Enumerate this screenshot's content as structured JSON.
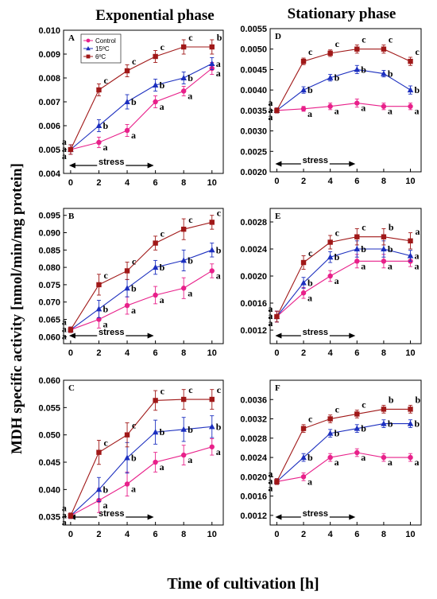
{
  "figure": {
    "col_titles": [
      "Exponential phase",
      "Stationary phase"
    ],
    "ylabel": "MDH specific activity [nmol/min/mg protein]",
    "xlabel": "Time of cultivation [h]",
    "stress_label": "stress"
  },
  "colors": {
    "control": "#e8208a",
    "t15": "#1c2fbf",
    "t6": "#a01818"
  },
  "legend": [
    "Control",
    "15ºC",
    "6ºC"
  ],
  "chart_data": [
    {
      "panel": "A",
      "type": "line",
      "x": [
        0,
        2,
        4,
        6,
        8,
        10
      ],
      "xticks": [
        0,
        2,
        4,
        6,
        8,
        10
      ],
      "ylim": [
        0.004,
        0.01
      ],
      "yticks": [
        "0.004",
        "0.005",
        "0.006",
        "0.007",
        "0.008",
        "0.009",
        "0.010"
      ],
      "show_legend": true,
      "series": [
        {
          "name": "Control",
          "values": [
            0.005,
            0.0053,
            0.0058,
            0.007,
            0.00745,
            0.0084
          ],
          "err": [
            0.0002,
            0.00022,
            0.00025,
            0.00025,
            0.0002,
            0.00025
          ],
          "labels": [
            "a",
            "a",
            "a",
            "a",
            "a",
            "a"
          ]
        },
        {
          "name": "15ºC",
          "values": [
            0.005,
            0.006,
            0.007,
            0.0077,
            0.008,
            0.0086
          ],
          "err": [
            0.0002,
            0.00025,
            0.0003,
            0.00025,
            0.00025,
            0.00025
          ],
          "labels": [
            "a",
            "b",
            "b",
            "b",
            "b",
            "a"
          ]
        },
        {
          "name": "6ºC",
          "values": [
            0.005,
            0.0075,
            0.0083,
            0.0089,
            0.0093,
            0.0093
          ],
          "err": [
            0.0002,
            0.00025,
            0.00025,
            0.00025,
            0.0003,
            0.0003
          ],
          "labels": [
            "a",
            "c",
            "c",
            "c",
            "c",
            "b"
          ]
        }
      ]
    },
    {
      "panel": "D",
      "type": "line",
      "x": [
        0,
        2,
        4,
        6,
        8,
        10
      ],
      "xticks": [
        0,
        2,
        4,
        6,
        8,
        10
      ],
      "ylim": [
        0.002,
        0.0055
      ],
      "yticks": [
        "0.0020",
        "0.0025",
        "0.0030",
        "0.0035",
        "0.0040",
        "0.0045",
        "0.0050",
        "0.0055"
      ],
      "show_legend": false,
      "series": [
        {
          "name": "Control",
          "values": [
            0.0035,
            0.00354,
            0.0036,
            0.00368,
            0.0036,
            0.0036
          ],
          "err": [
            6e-05,
            6e-05,
            8e-05,
            0.0001,
            8e-05,
            8e-05
          ],
          "labels": [
            "a",
            "a",
            "a",
            "a",
            "a",
            "a"
          ]
        },
        {
          "name": "15ºC",
          "values": [
            0.0035,
            0.004,
            0.0043,
            0.0045,
            0.0044,
            0.004
          ],
          "err": [
            6e-05,
            8e-05,
            8e-05,
            0.0001,
            8e-05,
            0.0001
          ],
          "labels": [
            "a",
            "b",
            "b",
            "b",
            "b",
            "b"
          ]
        },
        {
          "name": "6ºC",
          "values": [
            0.0035,
            0.0047,
            0.0049,
            0.005,
            0.005,
            0.0047
          ],
          "err": [
            6e-05,
            8e-05,
            8e-05,
            0.0001,
            0.0001,
            0.0001
          ],
          "labels": [
            "a",
            "c",
            "c",
            "c",
            "c",
            "c"
          ]
        }
      ]
    },
    {
      "panel": "B",
      "type": "line",
      "x": [
        0,
        2,
        4,
        6,
        8,
        10
      ],
      "xticks": [
        0,
        2,
        4,
        6,
        8,
        10
      ],
      "ylim": [
        0.058,
        0.097
      ],
      "yticks": [
        "0.060",
        "0.065",
        "0.070",
        "0.075",
        "0.080",
        "0.085",
        "0.090",
        "0.095"
      ],
      "show_legend": false,
      "series": [
        {
          "name": "Control",
          "values": [
            0.062,
            0.065,
            0.069,
            0.072,
            0.074,
            0.079
          ],
          "err": [
            0.0008,
            0.0025,
            0.0025,
            0.0025,
            0.003,
            0.002
          ],
          "labels": [
            "a",
            "a",
            "a",
            "a",
            "a",
            "a"
          ]
        },
        {
          "name": "15ºC",
          "values": [
            0.062,
            0.068,
            0.074,
            0.08,
            0.082,
            0.085
          ],
          "err": [
            0.0008,
            0.0025,
            0.0025,
            0.002,
            0.003,
            0.002
          ],
          "labels": [
            "a",
            "b",
            "b",
            "b",
            "b",
            "b"
          ]
        },
        {
          "name": "6ºC",
          "values": [
            0.062,
            0.075,
            0.079,
            0.087,
            0.091,
            0.093
          ],
          "err": [
            0.0008,
            0.003,
            0.0025,
            0.002,
            0.003,
            0.002
          ],
          "labels": [
            "a",
            "c",
            "c",
            "c",
            "c",
            "c"
          ]
        }
      ]
    },
    {
      "panel": "E",
      "type": "line",
      "x": [
        0,
        2,
        4,
        6,
        8,
        10
      ],
      "xticks": [
        0,
        2,
        4,
        6,
        8,
        10
      ],
      "ylim": [
        0.001,
        0.003
      ],
      "yticks": [
        "0.0012",
        "0.0016",
        "0.0020",
        "0.0024",
        "0.0028"
      ],
      "show_legend": false,
      "series": [
        {
          "name": "Control",
          "values": [
            0.0014,
            0.00175,
            0.002,
            0.00222,
            0.00222,
            0.00222
          ],
          "err": [
            8e-05,
            8e-05,
            8e-05,
            0.0001,
            0.0001,
            8e-05
          ],
          "labels": [
            "a",
            "a",
            "a",
            "a",
            "a",
            "a"
          ]
        },
        {
          "name": "15ºC",
          "values": [
            0.0014,
            0.0019,
            0.00228,
            0.0024,
            0.0024,
            0.0023
          ],
          "err": [
            8e-05,
            8e-05,
            8e-05,
            0.00012,
            0.00012,
            8e-05
          ],
          "labels": [
            "a",
            "b",
            "b",
            "b",
            "b",
            "a"
          ]
        },
        {
          "name": "6ºC",
          "values": [
            0.0014,
            0.0022,
            0.0025,
            0.00258,
            0.00258,
            0.00252
          ],
          "err": [
            8e-05,
            0.0001,
            0.0001,
            0.00012,
            0.00012,
            0.00012
          ],
          "labels": [
            "a",
            "c",
            "c",
            "c",
            "b",
            "a"
          ]
        }
      ]
    },
    {
      "panel": "C",
      "type": "line",
      "x": [
        0,
        2,
        4,
        6,
        8,
        10
      ],
      "xticks": [
        0,
        2,
        4,
        6,
        8,
        10
      ],
      "ylim": [
        0.0335,
        0.06
      ],
      "yticks": [
        "0.035",
        "0.040",
        "0.045",
        "0.050",
        "0.055",
        "0.060"
      ],
      "show_legend": false,
      "series": [
        {
          "name": "Control",
          "values": [
            0.0352,
            0.038,
            0.041,
            0.045,
            0.0463,
            0.0478
          ],
          "err": [
            0.0005,
            0.0022,
            0.0022,
            0.0018,
            0.0018,
            0.0015
          ],
          "labels": [
            "a",
            "a",
            "a",
            "a",
            "a",
            "a"
          ]
        },
        {
          "name": "15ºC",
          "values": [
            0.0352,
            0.04,
            0.0458,
            0.0505,
            0.051,
            0.0515
          ],
          "err": [
            0.0005,
            0.0022,
            0.0028,
            0.0022,
            0.0022,
            0.002
          ],
          "labels": [
            "a",
            "b",
            "b",
            "b",
            "b",
            "b"
          ]
        },
        {
          "name": "6ºC",
          "values": [
            0.0352,
            0.0468,
            0.05,
            0.0563,
            0.0565,
            0.0565
          ],
          "err": [
            0.0005,
            0.0022,
            0.0022,
            0.0018,
            0.0018,
            0.0018
          ],
          "labels": [
            "a",
            "c",
            "c",
            "c",
            "c",
            "c"
          ]
        }
      ]
    },
    {
      "panel": "F",
      "type": "line",
      "x": [
        0,
        2,
        4,
        6,
        8,
        10
      ],
      "xticks": [
        0,
        2,
        4,
        6,
        8,
        10
      ],
      "ylim": [
        0.001,
        0.004
      ],
      "yticks": [
        "0.0012",
        "0.0016",
        "0.0020",
        "0.0024",
        "0.0028",
        "0.0032",
        "0.0036"
      ],
      "show_legend": false,
      "series": [
        {
          "name": "Control",
          "values": [
            0.0019,
            0.002,
            0.0024,
            0.0025,
            0.0024,
            0.0024
          ],
          "err": [
            6e-05,
            8e-05,
            8e-05,
            8e-05,
            8e-05,
            8e-05
          ],
          "labels": [
            "a",
            "a",
            "a",
            "a",
            "a",
            "a"
          ]
        },
        {
          "name": "15ºC",
          "values": [
            0.0019,
            0.0024,
            0.0029,
            0.003,
            0.0031,
            0.0031
          ],
          "err": [
            6e-05,
            8e-05,
            8e-05,
            8e-05,
            8e-05,
            8e-05
          ],
          "labels": [
            "a",
            "b",
            "b",
            "b",
            "b",
            "b"
          ]
        },
        {
          "name": "6ºC",
          "values": [
            0.0019,
            0.003,
            0.0032,
            0.0033,
            0.0034,
            0.0034
          ],
          "err": [
            6e-05,
            8e-05,
            8e-05,
            8e-05,
            8e-05,
            8e-05
          ],
          "labels": [
            "a",
            "c",
            "c",
            "c",
            "b",
            "b"
          ]
        }
      ]
    }
  ]
}
